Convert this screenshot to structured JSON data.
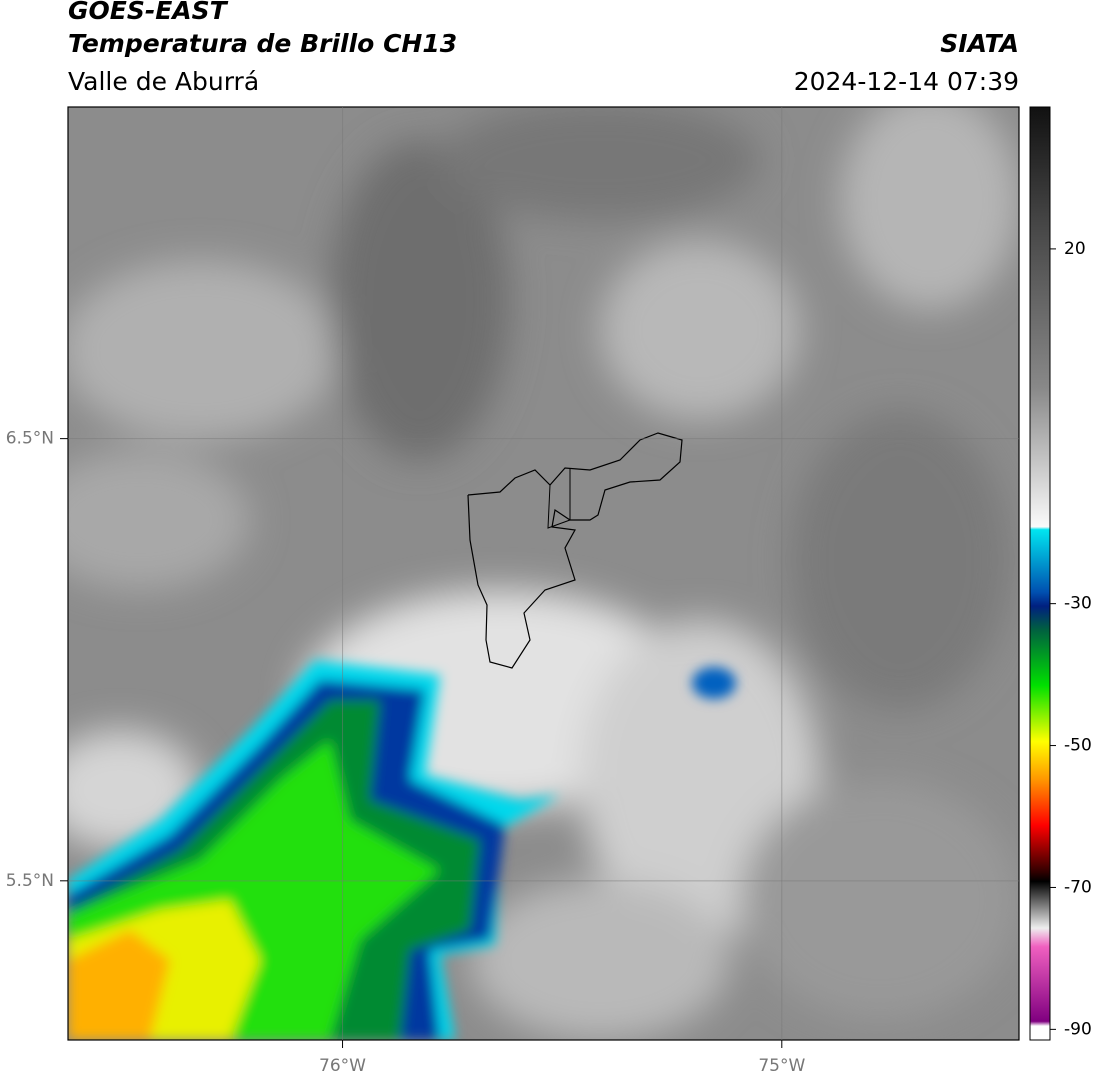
{
  "header": {
    "title": "GOES-EAST",
    "subtitle": "Temperatura de Brillo CH13",
    "region": "Valle de Aburrá",
    "source": "SIATA",
    "datetime": "2024-12-14 07:39"
  },
  "chart_data": {
    "type": "map",
    "xlim": [
      -76.625,
      -74.46
    ],
    "ylim": [
      5.14,
      7.25
    ],
    "xticks": [
      {
        "value": -76,
        "label": "76°W"
      },
      {
        "value": -75,
        "label": "75°W"
      }
    ],
    "yticks": [
      {
        "value": 6.5,
        "label": "6.5°N"
      },
      {
        "value": 5.5,
        "label": "5.5°N"
      }
    ],
    "grid": true,
    "colorbar": {
      "lim": [
        -91.5,
        40
      ],
      "ticks": [
        20,
        -30,
        -50,
        -70,
        -90
      ]
    }
  }
}
